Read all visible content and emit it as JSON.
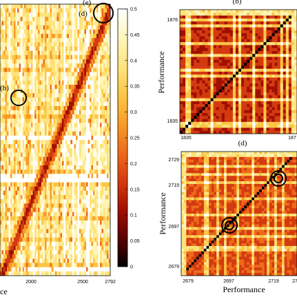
{
  "figure": {
    "panels": {
      "main": {
        "label_e": "(e)",
        "label_d": "(d)",
        "label_b": "(b)",
        "x_ticks": [
          "2000",
          "2500",
          "2792"
        ],
        "x_title_fragment": "ce"
      },
      "b": {
        "label": "(b)",
        "y_title": "Performance",
        "y_ticks": [
          "1876",
          "1835"
        ],
        "x_ticks": [
          "1835",
          "187"
        ]
      },
      "d": {
        "label": "(d)",
        "y_title": "Performance",
        "x_title": "Performance",
        "y_ticks": [
          "2729",
          "2719",
          "2697",
          "2679"
        ],
        "x_ticks": [
          "2679",
          "2697",
          "2719",
          "27"
        ]
      }
    },
    "colorbar": {
      "ticks": [
        "0.5",
        "0.45",
        "0.4",
        "0.35",
        "0.3",
        "0.25",
        "0.2",
        "0.15",
        "0.1",
        "0.05",
        "0"
      ],
      "colormap": [
        "#000000",
        "#5a0000",
        "#a01000",
        "#d43a10",
        "#ee6a1a",
        "#f79a28",
        "#fcc444",
        "#fee37a",
        "#fff5b8",
        "#ffffff"
      ]
    }
  },
  "chart_data": [
    {
      "type": "heatmap",
      "title": "",
      "panel": "main",
      "x_tick_labels": [
        "2000",
        "2500",
        "2792"
      ],
      "value_range": [
        0,
        0.5
      ],
      "annotations": [
        "(e)",
        "(d)",
        "(b)"
      ]
    },
    {
      "type": "heatmap",
      "title": "",
      "panel": "(b)",
      "ylabel": "Performance",
      "x_range": [
        1835,
        1876
      ],
      "y_range": [
        1835,
        1876
      ],
      "value_range": [
        0,
        0.5
      ]
    },
    {
      "type": "heatmap",
      "title": "",
      "panel": "(d)",
      "xlabel": "Performance",
      "ylabel": "Performance",
      "x_range": [
        2679,
        2729
      ],
      "y_range": [
        2679,
        2729
      ],
      "value_range": [
        0,
        0.5
      ]
    }
  ]
}
